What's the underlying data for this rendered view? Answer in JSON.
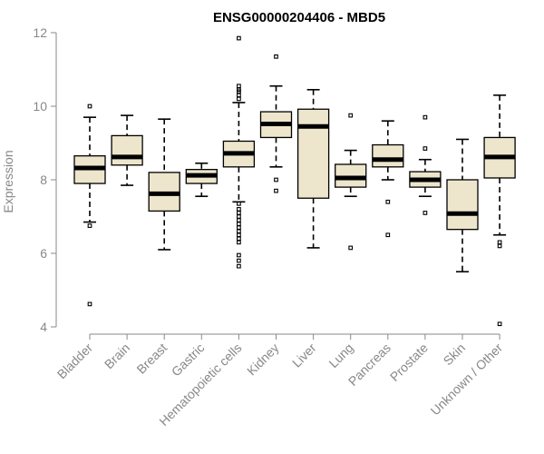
{
  "chart_data": {
    "type": "boxplot",
    "title": "ENSG00000204406 - MBD5",
    "ylabel": "Expression",
    "ylim": [
      4,
      12
    ],
    "yticks": [
      4,
      6,
      8,
      10,
      12
    ],
    "categories": [
      "Bladder",
      "Brain",
      "Breast",
      "Gastric",
      "Hematopoietic cells",
      "Kidney",
      "Liver",
      "Lung",
      "Pancreas",
      "Prostate",
      "Skin",
      "Unknown / Other"
    ],
    "boxes": [
      {
        "category": "Bladder",
        "whisker_low": 6.85,
        "q1": 7.9,
        "median": 8.32,
        "q3": 8.65,
        "whisker_high": 9.7,
        "outliers": [
          10.0,
          6.75,
          4.62
        ]
      },
      {
        "category": "Brain",
        "whisker_low": 7.85,
        "q1": 8.4,
        "median": 8.62,
        "q3": 9.2,
        "whisker_high": 9.75,
        "outliers": []
      },
      {
        "category": "Breast",
        "whisker_low": 6.1,
        "q1": 7.15,
        "median": 7.62,
        "q3": 8.2,
        "whisker_high": 9.65,
        "outliers": []
      },
      {
        "category": "Gastric",
        "whisker_low": 7.55,
        "q1": 7.9,
        "median": 8.12,
        "q3": 8.28,
        "whisker_high": 8.45,
        "outliers": []
      },
      {
        "category": "Hematopoietic cells",
        "whisker_low": 7.4,
        "q1": 8.35,
        "median": 8.72,
        "q3": 9.05,
        "whisker_high": 10.1,
        "outliers": [
          11.85,
          10.55,
          10.45,
          10.4,
          10.3,
          10.2,
          7.35,
          7.2,
          7.1,
          7.0,
          6.9,
          6.8,
          6.7,
          6.6,
          6.5,
          6.4,
          6.3,
          5.95,
          5.8,
          5.65
        ]
      },
      {
        "category": "Kidney",
        "whisker_low": 8.35,
        "q1": 9.15,
        "median": 9.52,
        "q3": 9.85,
        "whisker_high": 10.55,
        "outliers": [
          11.35,
          8.0,
          7.7
        ]
      },
      {
        "category": "Liver",
        "whisker_low": 6.15,
        "q1": 7.5,
        "median": 9.45,
        "q3": 9.92,
        "whisker_high": 10.45,
        "outliers": []
      },
      {
        "category": "Lung",
        "whisker_low": 7.55,
        "q1": 7.8,
        "median": 8.05,
        "q3": 8.42,
        "whisker_high": 8.8,
        "outliers": [
          9.75,
          6.15
        ]
      },
      {
        "category": "Pancreas",
        "whisker_low": 8.0,
        "q1": 8.35,
        "median": 8.55,
        "q3": 8.95,
        "whisker_high": 9.6,
        "outliers": [
          7.4,
          6.5
        ]
      },
      {
        "category": "Prostate",
        "whisker_low": 7.55,
        "q1": 7.8,
        "median": 8.0,
        "q3": 8.22,
        "whisker_high": 8.55,
        "outliers": [
          9.7,
          8.85,
          7.1
        ]
      },
      {
        "category": "Skin",
        "whisker_low": 5.5,
        "q1": 6.65,
        "median": 7.08,
        "q3": 8.0,
        "whisker_high": 9.1,
        "outliers": []
      },
      {
        "category": "Unknown / Other",
        "whisker_low": 6.5,
        "q1": 8.05,
        "median": 8.62,
        "q3": 9.15,
        "whisker_high": 10.3,
        "outliers": [
          6.3,
          6.2,
          4.08
        ]
      }
    ]
  }
}
